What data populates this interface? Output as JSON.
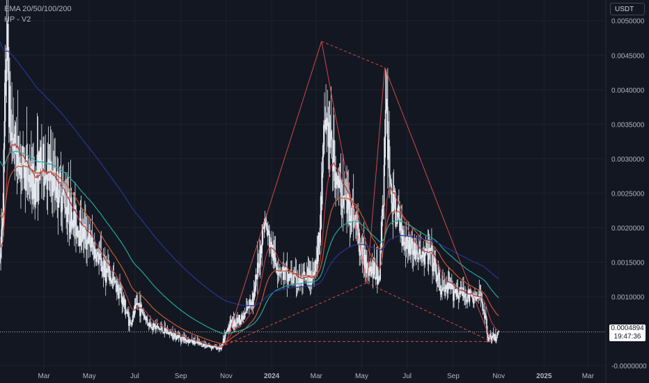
{
  "legend": {
    "line1": "EMA 20/50/100/200",
    "line2": "HP - V2"
  },
  "price_scale": {
    "unit": "USDT"
  },
  "last_price": {
    "value": "0.0004894",
    "countdown": "19:47:36"
  },
  "colors": {
    "background": "#131722",
    "grid": "#1e222d",
    "axis_text": "#b2b5be",
    "candle": "#e6e9f0",
    "ema20": "#b33a3a",
    "ema50": "#c85a2c",
    "ema100": "#26a69a",
    "ema200": "#283593",
    "pattern": "#ef5350"
  },
  "chart_data": {
    "type": "candlestick",
    "xlabel": "",
    "ylabel": "",
    "x_ticks": [
      "Mar",
      "May",
      "Jul",
      "Sep",
      "Nov",
      "2024",
      "Mar",
      "May",
      "Jul",
      "Sep",
      "Nov",
      "2025",
      "Mar"
    ],
    "x_tick_dates": [
      "2023-03-01",
      "2023-05-01",
      "2023-07-01",
      "2023-09-01",
      "2023-11-01",
      "2024-01-01",
      "2024-03-01",
      "2024-05-01",
      "2024-07-01",
      "2024-09-01",
      "2024-11-01",
      "2025-01-01",
      "2025-03-01"
    ],
    "y_ticks": [
      "0.0050000",
      "0.0045000",
      "0.0040000",
      "0.0035000",
      "0.0030000",
      "0.0025000",
      "0.0020000",
      "0.0015000",
      "0.0010000",
      "-0.0000000"
    ],
    "y_tick_values": [
      0.005,
      0.0045,
      0.004,
      0.0035,
      0.003,
      0.0025,
      0.002,
      0.0015,
      0.001,
      0.0
    ],
    "ylim": [
      -5e-05,
      0.0053
    ],
    "grid": true,
    "price_anchors": [
      [
        "2023-01-01",
        0.0015
      ],
      [
        "2023-01-05",
        0.0024
      ],
      [
        "2023-01-10",
        0.0048
      ],
      [
        "2023-01-15",
        0.0034
      ],
      [
        "2023-01-25",
        0.003
      ],
      [
        "2023-02-05",
        0.0028
      ],
      [
        "2023-02-15",
        0.0026
      ],
      [
        "2023-02-25",
        0.0029
      ],
      [
        "2023-03-10",
        0.0027
      ],
      [
        "2023-03-25",
        0.0025
      ],
      [
        "2023-04-10",
        0.0021
      ],
      [
        "2023-05-01",
        0.0018
      ],
      [
        "2023-05-20",
        0.0014
      ],
      [
        "2023-06-10",
        0.0011
      ],
      [
        "2023-06-25",
        0.0006
      ],
      [
        "2023-07-05",
        0.0009
      ],
      [
        "2023-07-20",
        0.0006
      ],
      [
        "2023-08-10",
        0.0005
      ],
      [
        "2023-09-01",
        0.0004
      ],
      [
        "2023-10-01",
        0.0003
      ],
      [
        "2023-10-25",
        0.00025
      ],
      [
        "2023-11-05",
        0.0006
      ],
      [
        "2023-11-25",
        0.0007
      ],
      [
        "2023-12-10",
        0.0011
      ],
      [
        "2023-12-22",
        0.0021
      ],
      [
        "2024-01-05",
        0.0015
      ],
      [
        "2024-01-20",
        0.0013
      ],
      [
        "2024-02-10",
        0.0012
      ],
      [
        "2024-02-25",
        0.0013
      ],
      [
        "2024-03-05",
        0.0018
      ],
      [
        "2024-03-13",
        0.0036
      ],
      [
        "2024-03-20",
        0.0032
      ],
      [
        "2024-04-01",
        0.0025
      ],
      [
        "2024-04-20",
        0.0022
      ],
      [
        "2024-05-01",
        0.0016
      ],
      [
        "2024-05-15",
        0.0014
      ],
      [
        "2024-05-25",
        0.0013
      ],
      [
        "2024-06-03",
        0.0037
      ],
      [
        "2024-06-10",
        0.0024
      ],
      [
        "2024-06-25",
        0.0019
      ],
      [
        "2024-07-15",
        0.0016
      ],
      [
        "2024-08-01",
        0.0016
      ],
      [
        "2024-08-15",
        0.0011
      ],
      [
        "2024-09-01",
        0.0011
      ],
      [
        "2024-09-20",
        0.001
      ],
      [
        "2024-10-10",
        0.00095
      ],
      [
        "2024-10-18",
        0.0004
      ],
      [
        "2024-10-28",
        0.0004
      ],
      [
        "2024-11-01",
        0.0004894
      ]
    ],
    "emas": [
      {
        "name": "EMA 20",
        "color": "#b33a3a",
        "period": 20
      },
      {
        "name": "EMA 50",
        "color": "#c85a2c",
        "period": 50
      },
      {
        "name": "EMA 100",
        "color": "#26a69a",
        "period": 100
      },
      {
        "name": "EMA 200",
        "color": "#283593",
        "period": 200
      }
    ],
    "pattern_lines": {
      "solid": [
        [
          [
            "2023-10-31",
            0.0003
          ],
          [
            "2024-03-08",
            0.0047
          ]
        ],
        [
          [
            "2024-03-08",
            0.0047
          ],
          [
            "2024-05-08",
            0.0012
          ]
        ],
        [
          [
            "2024-05-08",
            0.0012
          ],
          [
            "2024-06-01",
            0.00432
          ]
        ],
        [
          [
            "2024-06-01",
            0.00432
          ],
          [
            "2024-10-22",
            0.00035
          ]
        ]
      ],
      "dashed": [
        [
          [
            "2024-03-08",
            0.0047
          ],
          [
            "2024-06-01",
            0.00432
          ]
        ],
        [
          [
            "2023-10-31",
            0.0003
          ],
          [
            "2024-05-08",
            0.0012
          ]
        ],
        [
          [
            "2024-05-08",
            0.0012
          ],
          [
            "2024-10-22",
            0.00035
          ]
        ],
        [
          [
            "2023-10-31",
            0.00035
          ],
          [
            "2024-10-22",
            0.00035
          ]
        ]
      ]
    },
    "last_price": 0.0004894
  }
}
